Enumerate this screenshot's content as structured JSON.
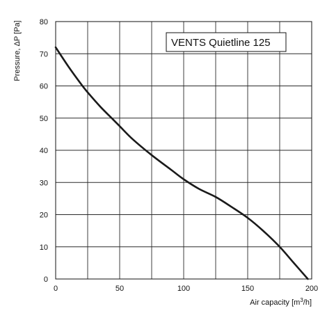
{
  "chart_data": {
    "type": "line",
    "title": "",
    "legend_box_text": "VENTS Quietline 125",
    "legend_placement": "top-right",
    "xlabel": {
      "prefix": "Air capacity [m",
      "superscript": "3",
      "suffix": "/h]"
    },
    "ylabel": "Pressure, ΔP [Pa]",
    "xlim": [
      0,
      200
    ],
    "ylim": [
      0,
      80
    ],
    "x_ticks": [
      0,
      50,
      100,
      150,
      200
    ],
    "y_ticks": [
      0,
      10,
      20,
      30,
      40,
      50,
      60,
      70,
      80
    ],
    "x_grid": [
      0,
      25,
      50,
      75,
      100,
      125,
      150,
      175,
      200
    ],
    "y_grid": [
      0,
      10,
      20,
      30,
      40,
      50,
      60,
      70,
      80
    ],
    "grid": true,
    "series": [
      {
        "color": "#1a1a1a",
        "points": [
          [
            0,
            72
          ],
          [
            10,
            66
          ],
          [
            20,
            60.5
          ],
          [
            25,
            58
          ],
          [
            35,
            53.5
          ],
          [
            45,
            49.5
          ],
          [
            50,
            47.5
          ],
          [
            60,
            43.5
          ],
          [
            75,
            38.5
          ],
          [
            90,
            34
          ],
          [
            100,
            31
          ],
          [
            112,
            28
          ],
          [
            125,
            25.5
          ],
          [
            137,
            22.5
          ],
          [
            150,
            19
          ],
          [
            162,
            15
          ],
          [
            175,
            10
          ],
          [
            186,
            5
          ],
          [
            197,
            0
          ]
        ]
      }
    ]
  }
}
